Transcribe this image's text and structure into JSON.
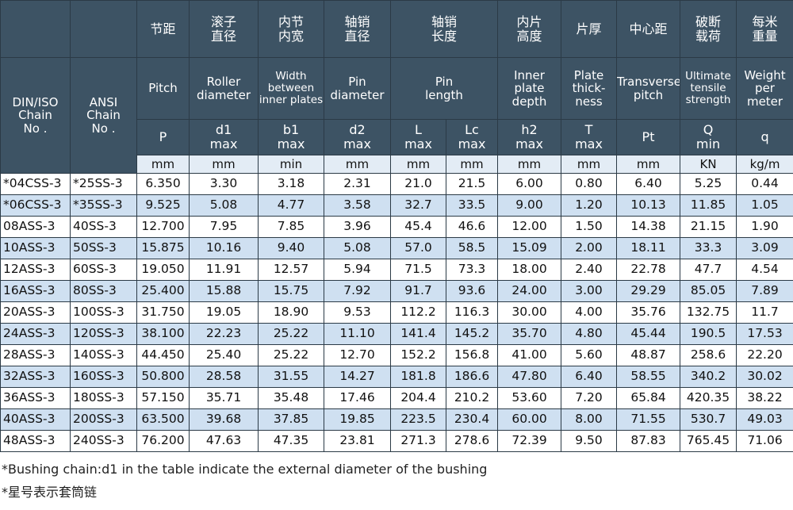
{
  "table": {
    "header": {
      "chinese": [
        [
          "节距"
        ],
        [
          "滚子",
          "直径"
        ],
        [
          "内节",
          "内宽"
        ],
        [
          "轴销",
          "直径"
        ],
        [
          "轴销",
          "长度"
        ],
        [
          "内片",
          "高度"
        ],
        [
          "片厚"
        ],
        [
          "中心距"
        ],
        [
          "破断",
          "载荷"
        ],
        [
          "每米",
          "重量"
        ]
      ],
      "english": [
        [
          "DIN/ISO",
          "Chain",
          "No ."
        ],
        [
          "ANSI",
          "Chain",
          "No ."
        ],
        [
          "Pitch"
        ],
        [
          "Roller",
          "diameter"
        ],
        [
          "Width",
          "between",
          "inner plates"
        ],
        [
          "Pin",
          "diameter"
        ],
        [
          "Pin",
          "length"
        ],
        [
          "Inner",
          "plate",
          "depth"
        ],
        [
          "Plate",
          "thick-",
          "ness"
        ],
        [
          "Transverse",
          "pitch"
        ],
        [
          "Ultimate",
          "tensile",
          "strength"
        ],
        [
          "Weight",
          "per",
          "meter"
        ]
      ],
      "symbols": [
        [
          "P"
        ],
        [
          "d1",
          "max"
        ],
        [
          "b1",
          "max"
        ],
        [
          "d2",
          "max"
        ],
        [
          "L",
          "max"
        ],
        [
          "Lc",
          "max"
        ],
        [
          "h2",
          "max"
        ],
        [
          "T",
          "max"
        ],
        [
          "Pt"
        ],
        [
          "Q",
          "min"
        ],
        [
          "q"
        ]
      ],
      "units": [
        "mm",
        "mm",
        "min",
        "mm",
        "mm",
        "mm",
        "mm",
        "mm",
        "mm",
        "KN",
        "kg/m"
      ]
    },
    "rows": [
      [
        "*04CSS-3",
        "*25SS-3",
        "6.350",
        "3.30",
        "3.18",
        "2.31",
        "21.0",
        "21.5",
        "6.00",
        "0.80",
        "6.40",
        "5.25",
        "0.44"
      ],
      [
        "*06CSS-3",
        "*35SS-3",
        "9.525",
        "5.08",
        "4.77",
        "3.58",
        "32.7",
        "33.5",
        "9.00",
        "1.20",
        "10.13",
        "11.85",
        "1.05"
      ],
      [
        "08ASS-3",
        "40SS-3",
        "12.700",
        "7.95",
        "7.85",
        "3.96",
        "45.4",
        "46.6",
        "12.00",
        "1.50",
        "14.38",
        "21.15",
        "1.90"
      ],
      [
        "10ASS-3",
        "50SS-3",
        "15.875",
        "10.16",
        "9.40",
        "5.08",
        "57.0",
        "58.5",
        "15.09",
        "2.00",
        "18.11",
        "33.3",
        "3.09"
      ],
      [
        "12ASS-3",
        "60SS-3",
        "19.050",
        "11.91",
        "12.57",
        "5.94",
        "71.5",
        "73.3",
        "18.00",
        "2.40",
        "22.78",
        "47.7",
        "4.54"
      ],
      [
        "16ASS-3",
        "80SS-3",
        "25.400",
        "15.88",
        "15.75",
        "7.92",
        "91.7",
        "93.6",
        "24.00",
        "3.00",
        "29.29",
        "85.05",
        "7.89"
      ],
      [
        "20ASS-3",
        "100SS-3",
        "31.750",
        "19.05",
        "18.90",
        "9.53",
        "112.2",
        "116.3",
        "30.00",
        "4.00",
        "35.76",
        "132.75",
        "11.7"
      ],
      [
        "24ASS-3",
        "120SS-3",
        "38.100",
        "22.23",
        "25.22",
        "11.10",
        "141.4",
        "145.2",
        "35.70",
        "4.80",
        "45.44",
        "190.5",
        "17.53"
      ],
      [
        "28ASS-3",
        "140SS-3",
        "44.450",
        "25.40",
        "25.22",
        "12.70",
        "152.2",
        "156.8",
        "41.00",
        "5.60",
        "48.87",
        "258.6",
        "22.20"
      ],
      [
        "32ASS-3",
        "160SS-3",
        "50.800",
        "28.58",
        "31.55",
        "14.27",
        "181.8",
        "186.6",
        "47.80",
        "6.40",
        "58.55",
        "340.2",
        "30.02"
      ],
      [
        "36ASS-3",
        "180SS-3",
        "57.150",
        "35.71",
        "35.48",
        "17.46",
        "204.4",
        "210.2",
        "53.60",
        "7.20",
        "65.84",
        "420.35",
        "38.22"
      ],
      [
        "40ASS-3",
        "200SS-3",
        "63.500",
        "39.68",
        "37.85",
        "19.85",
        "223.5",
        "230.4",
        "60.00",
        "8.00",
        "71.55",
        "530.7",
        "49.03"
      ],
      [
        "48ASS-3",
        "240SS-3",
        "76.200",
        "47.63",
        "47.35",
        "23.81",
        "271.3",
        "278.6",
        "72.39",
        "9.50",
        "87.83",
        "765.45",
        "71.06"
      ]
    ]
  },
  "footnotes": [
    "*Bushing chain:d1 in the table indicate the external diameter of the bushing",
    "*星号表示套筒链"
  ]
}
